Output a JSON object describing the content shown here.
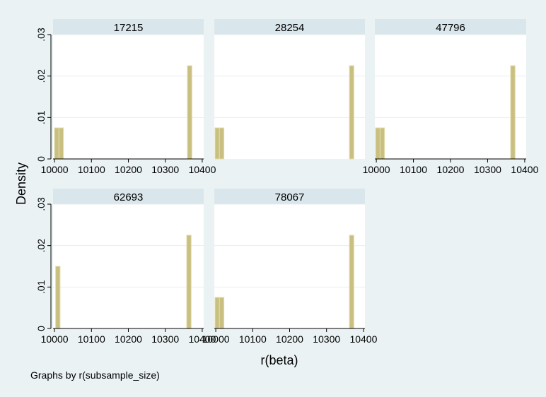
{
  "chart_data": {
    "type": "bar",
    "chart_kind": "histogram",
    "facet_by": "r(subsample_size)",
    "note": "Graphs by r(subsample_size)",
    "xlabel": "r(beta)",
    "ylabel": "Density",
    "xlim": [
      9996,
      10404
    ],
    "ylim": [
      0,
      0.03
    ],
    "x_ticks": [
      10000,
      10100,
      10200,
      10300,
      10400
    ],
    "x_tick_labels": [
      "10000",
      "10100",
      "10200",
      "10300",
      "10400"
    ],
    "y_ticks": [
      0,
      0.01,
      0.02,
      0.03
    ],
    "y_tick_labels": [
      "0",
      ".01",
      ".02",
      ".03"
    ],
    "bin_width": 12,
    "grid": true,
    "bar_color": "#c8bf80",
    "bar_edge_color": "#e3dcab",
    "plot_background": "#ffffff",
    "strip_background": "#d9e6eb",
    "panels": [
      {
        "title": "17215",
        "bars": [
          {
            "x": 10000,
            "density": 0.0075
          },
          {
            "x": 10012,
            "density": 0.0075
          },
          {
            "x": 10360,
            "density": 0.0225
          }
        ]
      },
      {
        "title": "28254",
        "bars": [
          {
            "x": 9998,
            "density": 0.0075
          },
          {
            "x": 10010,
            "density": 0.0075
          },
          {
            "x": 10362,
            "density": 0.0225
          }
        ]
      },
      {
        "title": "47796",
        "bars": [
          {
            "x": 9998,
            "density": 0.0075
          },
          {
            "x": 10010,
            "density": 0.0075
          },
          {
            "x": 10362,
            "density": 0.0225
          }
        ]
      },
      {
        "title": "62693",
        "bars": [
          {
            "x": 10003,
            "density": 0.015
          },
          {
            "x": 10358,
            "density": 0.0225
          }
        ]
      },
      {
        "title": "78067",
        "bars": [
          {
            "x": 9998,
            "density": 0.0075
          },
          {
            "x": 10010,
            "density": 0.0075
          },
          {
            "x": 10362,
            "density": 0.0225
          }
        ]
      }
    ]
  }
}
